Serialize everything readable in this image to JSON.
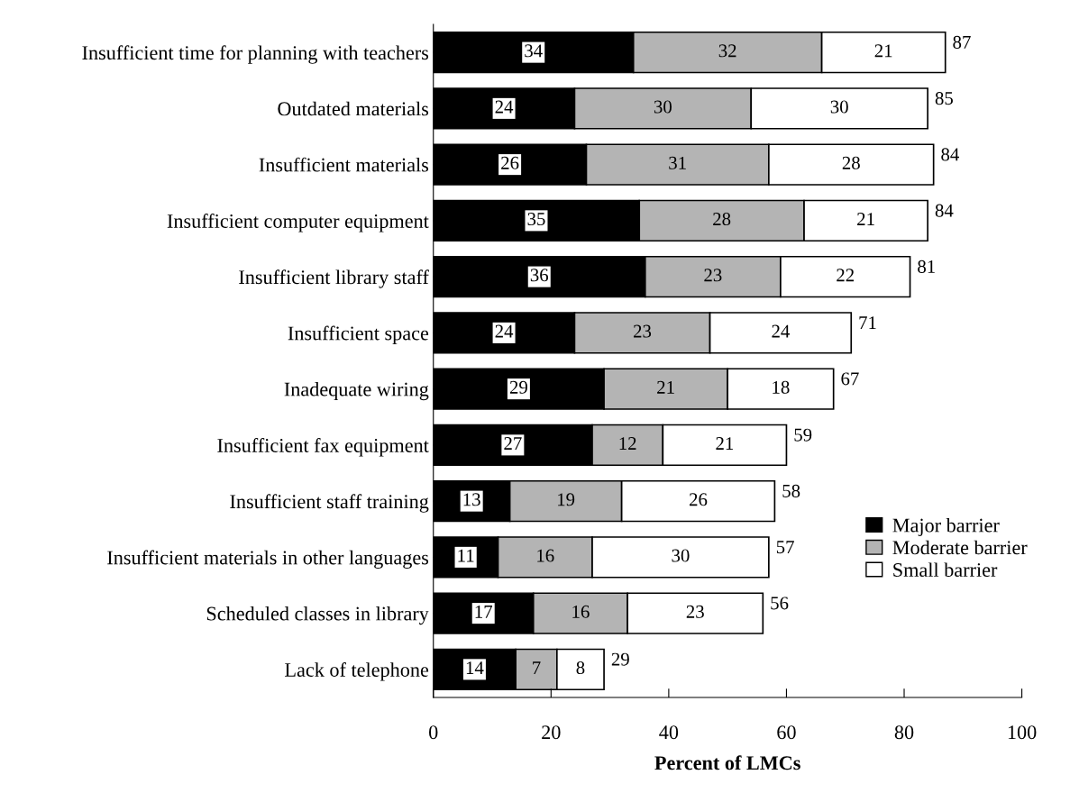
{
  "chart_data": {
    "type": "bar",
    "orientation": "horizontal",
    "stacked": true,
    "data_labels": true,
    "categories": [
      "Insufficient time for planning with teachers",
      "Outdated materials",
      "Insufficient materials",
      "Insufficient computer equipment",
      "Insufficient library staff",
      "Insufficient space",
      "Inadequate wiring",
      "Insufficient fax equipment",
      "Insufficient staff training",
      "Insufficient materials in other languages",
      "Scheduled classes in library",
      "Lack of telephone"
    ],
    "series": [
      {
        "name": "Major barrier",
        "color": "#000000",
        "values": [
          34,
          24,
          26,
          35,
          36,
          24,
          29,
          27,
          13,
          11,
          17,
          14
        ]
      },
      {
        "name": "Moderate barrier",
        "color": "#b4b4b4",
        "values": [
          32,
          30,
          31,
          28,
          23,
          23,
          21,
          12,
          19,
          16,
          16,
          7
        ]
      },
      {
        "name": "Small barrier",
        "color": "#ffffff",
        "values": [
          21,
          30,
          28,
          21,
          22,
          24,
          18,
          21,
          26,
          30,
          23,
          8
        ]
      }
    ],
    "totals": [
      "87",
      "85",
      "84",
      "84",
      "81",
      "71",
      "67",
      "59",
      "58",
      "57",
      "56",
      "29"
    ],
    "xlim": [
      0,
      100
    ],
    "xticks": [
      0,
      20,
      40,
      60,
      80,
      100
    ],
    "xlabel": "Percent of LMCs",
    "legend": "right",
    "grid": false
  }
}
